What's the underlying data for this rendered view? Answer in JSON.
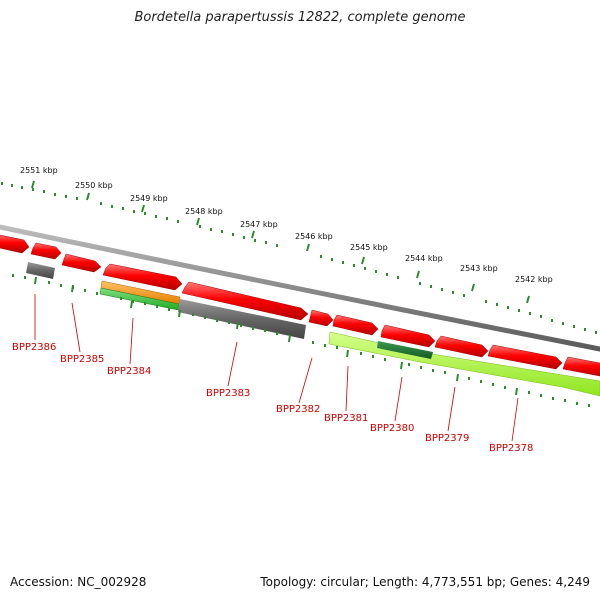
{
  "title": "Bordetella parapertussis 12822, complete genome",
  "footer": {
    "accession": "Accession: NC_002928",
    "stats": "Topology: circular; Length: 4,773,551 bp; Genes: 4,249"
  },
  "colors": {
    "forward_cds": "#ff0000",
    "reverse_cds": "#ff0000",
    "backbone": "#8a8a8a",
    "tick": "#2e8b2e",
    "label": "#cc0000",
    "orange": "#ff9900",
    "green": "#33cc33",
    "lime": "#aaff33",
    "darkgreen": "#1e7a32",
    "gray": "#666666"
  },
  "kbp_labels": [
    "2551 kbp",
    "2550 kbp",
    "2549 kbp",
    "2548 kbp",
    "2547 kbp",
    "2546 kbp",
    "2545 kbp",
    "2544 kbp",
    "2543 kbp",
    "2542 kbp"
  ],
  "gene_labels": [
    "BPP2386",
    "BPP2385",
    "BPP2384",
    "BPP2383",
    "BPP2382",
    "BPP2381",
    "BPP2380",
    "BPP2379",
    "BPP2378"
  ]
}
